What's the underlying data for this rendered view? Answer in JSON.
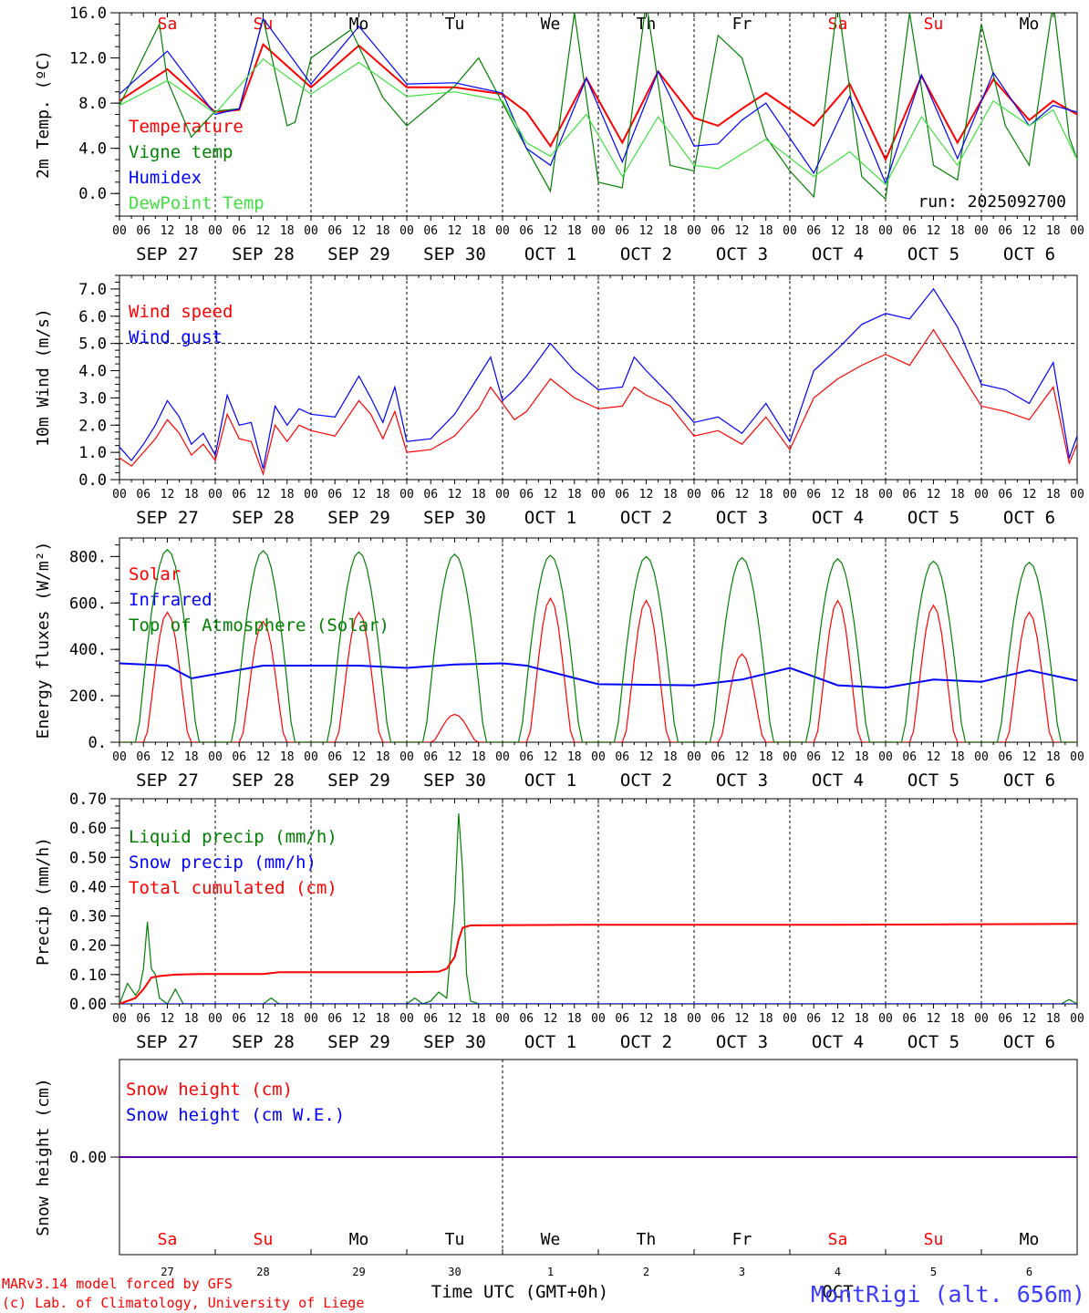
{
  "chart_data": [
    {
      "type": "line",
      "ylabel": "2m Temp. (ºC)",
      "ylim": [
        -2.0,
        16.0
      ],
      "yticks": [
        "0.0",
        "4.0",
        "8.0",
        "12.0",
        "16.0"
      ],
      "yticks_values": [
        0,
        4,
        8,
        12,
        16
      ],
      "x_range_hours": [
        0,
        240
      ],
      "run_label": "run: 2025092700",
      "day_labels": [
        "Sa",
        "Su",
        "Mo",
        "Tu",
        "We",
        "Th",
        "Fr",
        "Sa",
        "Su",
        "Mo"
      ],
      "series": [
        {
          "name": "Temperature",
          "color": "#ff0000",
          "x_hours": [
            0,
            12,
            24,
            30,
            36,
            48,
            60,
            72,
            84,
            96,
            102,
            108,
            117,
            126,
            135,
            144,
            150,
            156,
            162,
            174,
            183,
            192,
            201,
            210,
            219,
            228,
            234,
            240
          ],
          "values": [
            8.2,
            11.0,
            7.2,
            7.4,
            13.2,
            9.4,
            13.1,
            9.4,
            9.4,
            8.8,
            7.2,
            4.2,
            10.2,
            4.5,
            10.8,
            6.7,
            6.0,
            7.5,
            8.9,
            6.0,
            9.7,
            3.0,
            10.4,
            4.5,
            10.1,
            6.5,
            8.2,
            7.0
          ]
        },
        {
          "name": "Vigne temp",
          "color": "#008000",
          "x_hours": [
            0,
            10,
            12,
            18,
            24,
            30,
            36,
            42,
            44,
            48,
            58,
            66,
            72,
            84,
            90,
            102,
            108,
            114,
            120,
            126,
            132,
            138,
            144,
            150,
            156,
            162,
            168,
            174,
            180,
            186,
            192,
            198,
            204,
            210,
            216,
            222,
            228,
            234,
            238,
            240
          ],
          "values": [
            7.8,
            15.0,
            10.0,
            5.0,
            7.3,
            7.5,
            15.5,
            6.0,
            6.3,
            12.0,
            14.5,
            8.5,
            6.0,
            9.5,
            12.0,
            4.0,
            0.2,
            16.0,
            1.0,
            0.5,
            17.0,
            2.5,
            2.0,
            14.0,
            12.0,
            5.0,
            2.0,
            -0.3,
            17.0,
            1.5,
            -0.5,
            16.0,
            2.5,
            1.2,
            15.0,
            6.0,
            2.5,
            17.0,
            5.0,
            3.0
          ]
        },
        {
          "name": "Humidex",
          "color": "#0000ff",
          "x_hours": [
            0,
            12,
            24,
            30,
            36,
            48,
            60,
            72,
            84,
            96,
            102,
            108,
            117,
            126,
            135,
            144,
            150,
            156,
            162,
            174,
            183,
            192,
            201,
            210,
            219,
            228,
            234,
            240
          ],
          "values": [
            8.8,
            12.6,
            7.0,
            7.5,
            15.5,
            9.7,
            14.8,
            9.7,
            9.8,
            8.9,
            4.0,
            2.5,
            10.2,
            2.8,
            10.8,
            4.2,
            4.4,
            6.5,
            8.0,
            1.8,
            8.6,
            0.9,
            10.5,
            3.1,
            10.7,
            6.0,
            7.8,
            7.2
          ]
        },
        {
          "name": "DewPoint Temp",
          "color": "#40e040",
          "x_hours": [
            0,
            12,
            24,
            36,
            48,
            60,
            72,
            84,
            96,
            102,
            108,
            117,
            126,
            135,
            144,
            150,
            156,
            162,
            174,
            183,
            192,
            201,
            210,
            219,
            228,
            234,
            240
          ],
          "values": [
            7.8,
            10.0,
            7.1,
            11.9,
            8.8,
            11.6,
            8.6,
            9.0,
            8.2,
            4.5,
            3.3,
            7.0,
            1.5,
            6.8,
            2.5,
            2.2,
            3.5,
            4.8,
            1.5,
            3.7,
            0.8,
            6.8,
            2.5,
            8.2,
            6.0,
            7.4,
            3.0
          ]
        }
      ]
    },
    {
      "type": "line",
      "ylabel": "10m Wind (m/s)",
      "ylim": [
        0.0,
        7.5
      ],
      "yticks": [
        "0.0",
        "1.0",
        "2.0",
        "3.0",
        "4.0",
        "5.0",
        "6.0",
        "7.0"
      ],
      "yticks_values": [
        0,
        1,
        2,
        3,
        4,
        5,
        6,
        7
      ],
      "dashed_reference": 5.0,
      "series": [
        {
          "name": "Wind speed",
          "color": "#ff0000",
          "x_hours": [
            0,
            3,
            6,
            9,
            12,
            15,
            18,
            21,
            24,
            27,
            30,
            33,
            36,
            39,
            42,
            45,
            48,
            54,
            60,
            63,
            66,
            69,
            72,
            78,
            84,
            90,
            93,
            96,
            99,
            102,
            108,
            114,
            120,
            126,
            129,
            132,
            138,
            144,
            150,
            156,
            162,
            165,
            168,
            174,
            180,
            186,
            192,
            198,
            204,
            210,
            216,
            222,
            228,
            234,
            238,
            240
          ],
          "values": [
            0.8,
            0.5,
            1.0,
            1.5,
            2.2,
            1.7,
            0.9,
            1.3,
            0.7,
            2.4,
            1.5,
            1.4,
            0.2,
            2.0,
            1.4,
            2.0,
            1.8,
            1.6,
            2.9,
            2.4,
            1.5,
            2.5,
            1.0,
            1.1,
            1.6,
            2.6,
            3.4,
            2.8,
            2.2,
            2.5,
            3.7,
            3.0,
            2.6,
            2.7,
            3.4,
            3.1,
            2.7,
            1.6,
            1.8,
            1.3,
            2.3,
            1.7,
            1.1,
            3.0,
            3.7,
            4.2,
            4.6,
            4.2,
            5.5,
            4.1,
            2.7,
            2.5,
            2.2,
            3.4,
            0.6,
            1.3
          ]
        },
        {
          "name": "Wind gust",
          "color": "#0000ff",
          "x_hours": [
            0,
            3,
            6,
            9,
            12,
            15,
            18,
            21,
            24,
            27,
            30,
            33,
            36,
            39,
            42,
            45,
            48,
            54,
            60,
            63,
            66,
            69,
            72,
            78,
            84,
            90,
            93,
            96,
            99,
            102,
            108,
            114,
            120,
            126,
            129,
            132,
            138,
            144,
            150,
            156,
            162,
            165,
            168,
            174,
            180,
            186,
            192,
            198,
            204,
            210,
            216,
            222,
            228,
            234,
            238,
            240
          ],
          "values": [
            1.2,
            0.7,
            1.3,
            2.0,
            2.9,
            2.3,
            1.3,
            1.7,
            0.9,
            3.1,
            2.0,
            2.1,
            0.4,
            2.7,
            2.0,
            2.6,
            2.4,
            2.3,
            3.8,
            3.0,
            2.1,
            3.4,
            1.4,
            1.5,
            2.4,
            3.8,
            4.5,
            2.9,
            3.3,
            3.8,
            5.0,
            4.0,
            3.3,
            3.4,
            4.5,
            4.0,
            3.1,
            2.1,
            2.3,
            1.7,
            2.8,
            2.1,
            1.4,
            4.0,
            4.8,
            5.7,
            6.1,
            5.9,
            7.0,
            5.6,
            3.5,
            3.3,
            2.8,
            4.3,
            0.8,
            1.6
          ]
        }
      ]
    },
    {
      "type": "line",
      "ylabel": "Energy fluxes (W/m²)",
      "ylim": [
        0,
        880
      ],
      "yticks": [
        "0.",
        "200.",
        "400.",
        "600.",
        "800."
      ],
      "yticks_values": [
        0,
        200,
        400,
        600,
        800
      ],
      "series": [
        {
          "name": "Solar",
          "color": "#ff0000",
          "daily_peaks": [
            560,
            520,
            560,
            120,
            620,
            610,
            380,
            610,
            590,
            560
          ]
        },
        {
          "name": "Infrared",
          "color": "#0000ff",
          "x_hours": [
            0,
            12,
            18,
            36,
            48,
            60,
            72,
            84,
            96,
            102,
            120,
            144,
            156,
            168,
            180,
            192,
            204,
            216,
            228,
            240
          ],
          "values": [
            340,
            330,
            275,
            330,
            330,
            330,
            320,
            335,
            340,
            330,
            250,
            245,
            270,
            320,
            245,
            235,
            270,
            260,
            310,
            265
          ]
        },
        {
          "name": "Top of Atmosphere (Solar)",
          "color": "#008000",
          "daily_peaks": [
            830,
            825,
            820,
            810,
            805,
            800,
            795,
            790,
            780,
            775
          ]
        }
      ]
    },
    {
      "type": "line",
      "ylabel": "Precip (mm/h)",
      "ylim": [
        0.0,
        0.7
      ],
      "yticks": [
        "0.00",
        "0.10",
        "0.20",
        "0.30",
        "0.40",
        "0.50",
        "0.60",
        "0.70"
      ],
      "yticks_values": [
        0,
        0.1,
        0.2,
        0.3,
        0.4,
        0.5,
        0.6,
        0.7
      ],
      "series": [
        {
          "name": "Liquid precip (mm/h)",
          "color": "#008000",
          "x_hours": [
            0,
            2,
            4,
            5,
            6,
            7,
            8,
            9,
            10,
            12,
            14,
            16,
            18,
            20,
            36,
            38,
            40,
            72,
            74,
            76,
            78,
            80,
            82,
            84,
            85,
            86,
            87,
            88,
            90,
            236,
            238,
            240
          ],
          "values": [
            0,
            0.07,
            0.03,
            0.05,
            0.12,
            0.28,
            0.12,
            0.1,
            0.02,
            0,
            0.05,
            0,
            0,
            0,
            0,
            0.02,
            0,
            0,
            0.02,
            0,
            0.01,
            0.04,
            0.02,
            0.35,
            0.65,
            0.45,
            0.1,
            0.01,
            0,
            0,
            0.015,
            0
          ]
        },
        {
          "name": "Snow precip (mm/h)",
          "color": "#0000ff",
          "x_hours": [
            0,
            240
          ],
          "values": [
            0,
            0
          ]
        },
        {
          "name": "Total cumulated (cm)",
          "color": "#ff0000",
          "x_hours": [
            0,
            4,
            6,
            8,
            10,
            14,
            20,
            36,
            40,
            72,
            80,
            82,
            84,
            85,
            86,
            88,
            120,
            180,
            240
          ],
          "values": [
            0,
            0.02,
            0.05,
            0.09,
            0.095,
            0.1,
            0.102,
            0.102,
            0.108,
            0.108,
            0.11,
            0.12,
            0.16,
            0.22,
            0.26,
            0.268,
            0.27,
            0.27,
            0.273
          ]
        }
      ]
    },
    {
      "type": "line",
      "ylabel": "Snow height (cm)",
      "ylim": [
        -1,
        1
      ],
      "yticks": [
        "0.00"
      ],
      "yticks_values": [
        0
      ],
      "series": [
        {
          "name": "Snow height (cm)",
          "color": "#ff0000",
          "x_hours": [
            0,
            240
          ],
          "values": [
            0,
            0
          ]
        },
        {
          "name": "Snow height (cm W.E.)",
          "color": "#0000ff",
          "x_hours": [
            0,
            240
          ],
          "values": [
            0,
            0
          ]
        }
      ]
    }
  ],
  "axis": {
    "hour_ticks": [
      "00",
      "06",
      "12",
      "18"
    ],
    "date_labels": [
      "SEP 27",
      "SEP 28",
      "SEP 29",
      "SEP 30",
      "OCT  1",
      "OCT  2",
      "OCT  3",
      "OCT  4",
      "OCT  5",
      "OCT  6"
    ],
    "day_numbers": [
      "27",
      "28",
      "29",
      "30",
      "1",
      "2",
      "3",
      "4",
      "5",
      "6"
    ],
    "xlabel": "Time UTC (GMT+0h)",
    "overlap_label": "OCT",
    "weekend_color": "#ff0000",
    "weekday_color": "#000000",
    "weekend_days": [
      true,
      true,
      false,
      false,
      false,
      false,
      false,
      true,
      true,
      false
    ]
  },
  "footer": {
    "model_line": "MARv3.14 model forced by GFS",
    "copyright_line": "(c) Lab. of Climatology, University of Liege",
    "station": "MontRigi (alt. 656m)"
  }
}
